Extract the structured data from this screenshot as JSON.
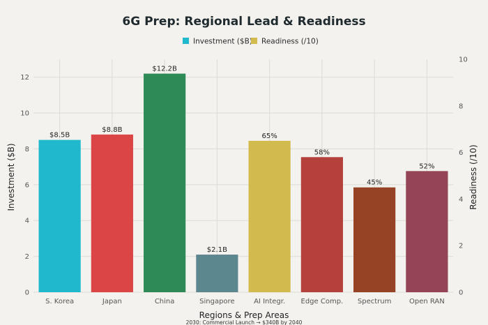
{
  "chart_data": {
    "type": "bar",
    "title": "6G Prep: Regional Lead & Readiness",
    "xlabel": "Regions & Prep Areas",
    "ylabel": "Investment ($B)",
    "y2label": "Readiness (/10)",
    "footnote": "2030: Commercial Launch → $340B by 2040",
    "ylim": [
      0,
      13
    ],
    "y2lim": [
      0,
      10
    ],
    "yticks": [
      "0",
      "2",
      "4",
      "6",
      "8",
      "10",
      "12"
    ],
    "y2ticks": [
      "0",
      "2",
      "4",
      "6",
      "8",
      "10"
    ],
    "grid": true,
    "legend_position": "top-center",
    "categories": [
      "S. Korea",
      "Japan",
      "China",
      "Singapore",
      "AI Integr.",
      "Edge Comp.",
      "Spectrum",
      "Open RAN"
    ],
    "series": [
      {
        "name": "Investment ($B)",
        "axis": "left",
        "color": "#1fb8cd",
        "points": [
          {
            "category": "S. Korea",
            "value": 8.5,
            "label": "$8.5B",
            "color": "#1fb8cd"
          },
          {
            "category": "Japan",
            "value": 8.8,
            "label": "$8.8B",
            "color": "#db4545"
          },
          {
            "category": "China",
            "value": 12.2,
            "label": "$12.2B",
            "color": "#2e8b57"
          },
          {
            "category": "Singapore",
            "value": 2.1,
            "label": "$2.1B",
            "color": "#5d878f"
          }
        ]
      },
      {
        "name": "Readiness (/10)",
        "axis": "right",
        "color": "#d2ba4c",
        "points": [
          {
            "category": "AI Integr.",
            "value": 6.5,
            "label": "65%",
            "color": "#d2ba4c"
          },
          {
            "category": "Edge Comp.",
            "value": 5.8,
            "label": "58%",
            "color": "#b4413c"
          },
          {
            "category": "Spectrum",
            "value": 4.5,
            "label": "45%",
            "color": "#964325"
          },
          {
            "category": "Open RAN",
            "value": 5.2,
            "label": "52%",
            "color": "#944454"
          }
        ]
      }
    ]
  }
}
